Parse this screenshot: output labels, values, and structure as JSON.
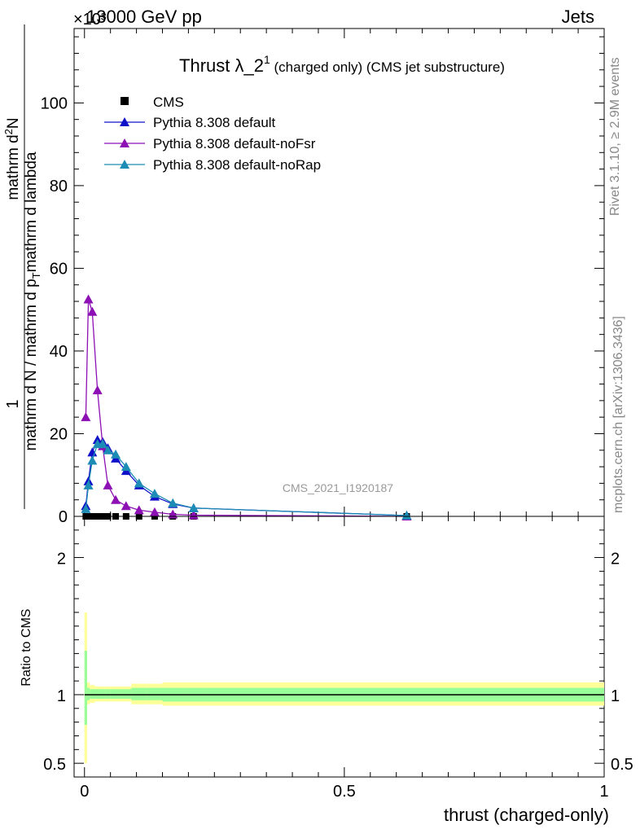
{
  "header": {
    "left": "13000 GeV pp",
    "right": "Jets",
    "exponent": "×10³"
  },
  "side": {
    "rivet": "Rivet 3.1.10, ≥ 2.9M events",
    "mcplots": "mcplots.cern.ch [arXiv:1306.3436]"
  },
  "watermark": "CMS_2021_I1920187",
  "chart_data": [
    {
      "type": "line",
      "title_main": "Thrust λ_2",
      "title_sup": "1",
      "title_rest": " (charged only) (CMS jet substructure)",
      "ylabel": "1/(mathrm d N / mathrm d p_T mathrm d lambda) · mathrm d²N/(mathrm d p_T mathrm d lambda)",
      "ylim": [
        0,
        118
      ],
      "yticks": [
        0,
        20,
        40,
        60,
        80,
        100
      ],
      "xlim": [
        -0.02,
        1.0
      ],
      "legend_position": "top-left",
      "legend": [
        {
          "label": "CMS",
          "marker": "square",
          "color": "#000000"
        },
        {
          "label": "Pythia 8.308 default",
          "marker": "triangle",
          "color": "#1010c8"
        },
        {
          "label": "Pythia 8.308 default-noFsr",
          "marker": "triangle",
          "color": "#8c10b4"
        },
        {
          "label": "Pythia 8.308 default-noRap",
          "marker": "triangle",
          "color": "#1c8cb4"
        }
      ],
      "series": [
        {
          "name": "CMS",
          "color": "#000000",
          "x": [
            0.0025,
            0.0075,
            0.015,
            0.025,
            0.035,
            0.045,
            0.06,
            0.08,
            0.105,
            0.135,
            0.17,
            0.21,
            0.62
          ],
          "y": [
            0,
            0,
            0,
            0,
            0,
            0,
            0,
            0,
            0,
            0,
            0,
            0,
            0
          ]
        },
        {
          "name": "Pythia 8.308 default",
          "color": "#1010c8",
          "x": [
            0.0025,
            0.0075,
            0.015,
            0.025,
            0.035,
            0.045,
            0.06,
            0.08,
            0.105,
            0.135,
            0.17,
            0.21,
            0.62
          ],
          "y": [
            2.5,
            8.5,
            15.5,
            18.5,
            18.0,
            16.5,
            14.0,
            11.0,
            7.5,
            4.8,
            3.0,
            2.0,
            0.2
          ]
        },
        {
          "name": "Pythia 8.308 default-noFsr",
          "color": "#8c10b4",
          "x": [
            0.0025,
            0.0075,
            0.015,
            0.025,
            0.035,
            0.045,
            0.06,
            0.08,
            0.105,
            0.135,
            0.17,
            0.21,
            0.62
          ],
          "y": [
            24.0,
            52.5,
            49.5,
            30.5,
            17.0,
            7.5,
            4.0,
            2.5,
            1.5,
            1.0,
            0.5,
            0.3,
            0.0
          ]
        },
        {
          "name": "Pythia 8.308 default-noRap",
          "color": "#1c8cb4",
          "x": [
            0.0025,
            0.0075,
            0.015,
            0.025,
            0.035,
            0.045,
            0.06,
            0.08,
            0.105,
            0.135,
            0.17,
            0.21,
            0.62
          ],
          "y": [
            1.8,
            7.5,
            13.5,
            17.5,
            17.5,
            16.0,
            15.0,
            12.0,
            8.0,
            5.5,
            3.2,
            2.0,
            0.2
          ]
        }
      ]
    },
    {
      "type": "area",
      "ylabel": "Ratio to CMS",
      "xlabel": "thrust (charged-only)",
      "ylim": [
        0.4,
        2.3
      ],
      "yticks": [
        0.5,
        1,
        2
      ],
      "xlim": [
        -0.02,
        1.0
      ],
      "xticks": [
        0,
        0.5,
        1
      ],
      "bands": {
        "edges": [
          0.0,
          0.005,
          0.01,
          0.02,
          0.03,
          0.04,
          0.05,
          0.07,
          0.09,
          0.12,
          0.15,
          0.19,
          0.23,
          1.0
        ],
        "outer_color": "#ffff99",
        "inner_color": "#99ff99",
        "outer_lo": [
          0.5,
          0.93,
          0.94,
          0.95,
          0.95,
          0.95,
          0.95,
          0.95,
          0.93,
          0.93,
          0.92,
          0.92,
          0.92
        ],
        "outer_hi": [
          1.6,
          1.09,
          1.07,
          1.06,
          1.06,
          1.06,
          1.06,
          1.06,
          1.08,
          1.08,
          1.09,
          1.09,
          1.09
        ],
        "inner_lo": [
          0.78,
          0.96,
          0.97,
          0.97,
          0.97,
          0.97,
          0.97,
          0.97,
          0.96,
          0.96,
          0.95,
          0.95,
          0.95
        ],
        "inner_hi": [
          1.32,
          1.05,
          1.04,
          1.04,
          1.04,
          1.04,
          1.04,
          1.04,
          1.05,
          1.05,
          1.05,
          1.05,
          1.05
        ]
      }
    }
  ]
}
